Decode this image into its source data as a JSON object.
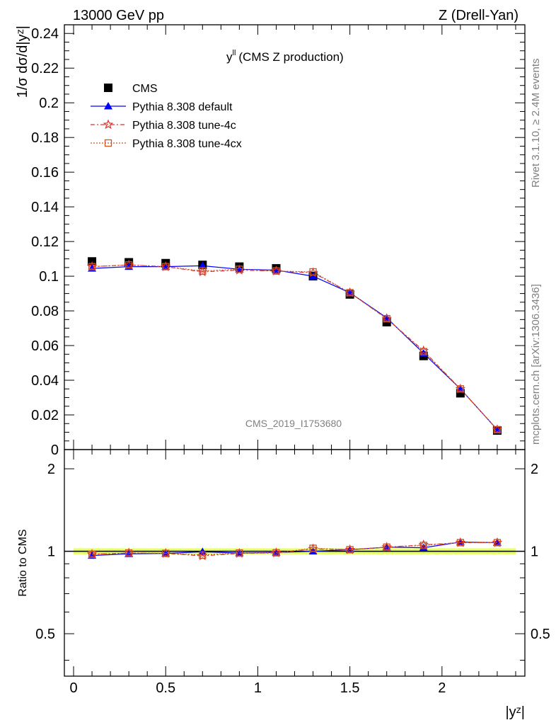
{
  "header": {
    "left": "13000 GeV pp",
    "right": "Z (Drell-Yan)"
  },
  "side_text": {
    "top": "Rivet 3.1.10, ≥ 2.4M events",
    "bottom": "mcplots.cern.ch [arXiv:1306.3436]"
  },
  "watermark": "CMS_2019_I1753680",
  "chart_data": [
    {
      "type": "line",
      "title_main": "y",
      "title_sup": "ll",
      "title_rest": "(CMS Z production)",
      "ylabel": "1/σ dσ/d|yᶻ|",
      "ylim": [
        0,
        0.245
      ],
      "yticks": [
        "0",
        "0.02",
        "0.04",
        "0.06",
        "0.08",
        "0.1",
        "0.12",
        "0.14",
        "0.16",
        "0.18",
        "0.2",
        "0.22",
        "0.24"
      ],
      "ytick_values": [
        0,
        0.02,
        0.04,
        0.06,
        0.08,
        0.1,
        0.12,
        0.14,
        0.16,
        0.18,
        0.2,
        0.22,
        0.24
      ],
      "x": [
        0.1,
        0.3,
        0.5,
        0.7,
        0.9,
        1.1,
        1.3,
        1.5,
        1.7,
        1.9,
        2.1,
        2.3
      ],
      "xlim": [
        -0.05,
        2.45
      ],
      "legend_position": "top-left",
      "series": [
        {
          "name": "CMS",
          "color": "#000000",
          "marker": "square",
          "values": [
            0.1085,
            0.108,
            0.1075,
            0.1065,
            0.1055,
            0.1045,
            0.1,
            0.0895,
            0.0735,
            0.054,
            0.0325,
            0.011
          ]
        },
        {
          "name": "Pythia 8.308 default",
          "color": "#0000ff",
          "marker": "triangle",
          "values": [
            0.1045,
            0.1055,
            0.1055,
            0.106,
            0.104,
            0.1035,
            0.1,
            0.0905,
            0.076,
            0.0555,
            0.035,
            0.0115
          ]
        },
        {
          "name": "Pythia 8.308 tune-4c",
          "color": "#e03030",
          "marker": "star",
          "values": [
            0.1055,
            0.1065,
            0.1055,
            0.1025,
            0.1035,
            0.103,
            0.102,
            0.0905,
            0.0755,
            0.057,
            0.035,
            0.0115
          ]
        },
        {
          "name": "Pythia 8.308 tune-4cx",
          "color": "#cc5522",
          "marker": "open-square",
          "values": [
            0.1055,
            0.1065,
            0.1055,
            0.103,
            0.104,
            0.103,
            0.1025,
            0.0905,
            0.0755,
            0.0565,
            0.035,
            0.0115
          ]
        }
      ]
    },
    {
      "type": "line",
      "ylabel": "Ratio to CMS",
      "xlabel": "|yᶻ|",
      "ylim": [
        0.35,
        2.35
      ],
      "scale": "log",
      "yticks": [
        "0.5",
        "1",
        "2"
      ],
      "ytick_values": [
        0.5,
        1,
        2
      ],
      "xticks": [
        "0",
        "0.5",
        "1",
        "1.5",
        "2"
      ],
      "xtick_values": [
        0,
        0.5,
        1,
        1.5,
        2
      ],
      "band_color": "#e5ff66",
      "x": [
        0.1,
        0.3,
        0.5,
        0.7,
        0.9,
        1.1,
        1.3,
        1.5,
        1.7,
        1.9,
        2.1,
        2.3
      ],
      "series": [
        {
          "name": "Pythia 8.308 default",
          "color": "#0000ff",
          "marker": "triangle",
          "values": [
            0.965,
            0.978,
            0.982,
            0.995,
            0.985,
            0.99,
            1.0,
            1.013,
            1.035,
            1.03,
            1.08,
            1.075
          ]
        },
        {
          "name": "Pythia 8.308 tune-4c",
          "color": "#e03030",
          "marker": "star",
          "values": [
            0.975,
            0.985,
            0.982,
            0.962,
            0.982,
            0.987,
            1.02,
            1.013,
            1.035,
            1.055,
            1.075,
            1.075
          ]
        },
        {
          "name": "Pythia 8.308 tune-4cx",
          "color": "#cc5522",
          "marker": "open-square",
          "values": [
            0.975,
            0.985,
            0.982,
            0.968,
            0.985,
            0.987,
            1.025,
            1.013,
            1.035,
            1.05,
            1.075,
            1.075
          ]
        }
      ]
    }
  ]
}
